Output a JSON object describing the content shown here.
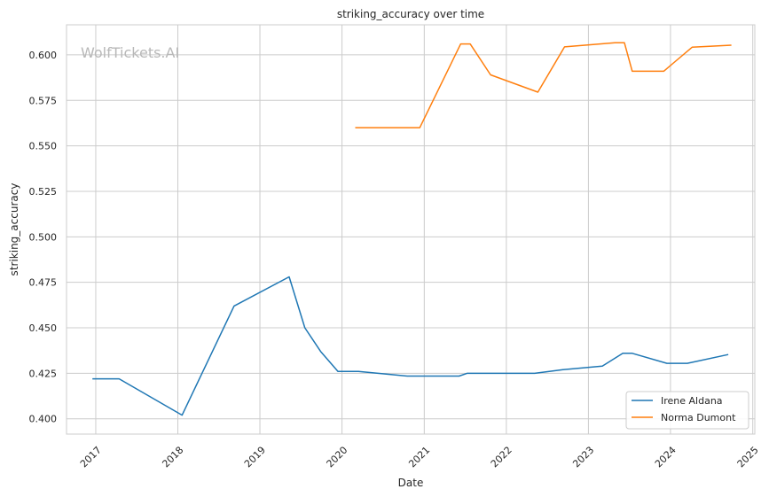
{
  "chart_data": {
    "type": "line",
    "title": "striking_accuracy over time",
    "xlabel": "Date",
    "ylabel": "striking_accuracy",
    "watermark": "WolfTickets.AI",
    "xlim": [
      "2016-08-24",
      "2025-01-10"
    ],
    "ylim": [
      0.3916,
      0.6165
    ],
    "grid": true,
    "legend_position": "bottom-right",
    "x_ticks": [
      "2017",
      "2018",
      "2019",
      "2020",
      "2021",
      "2022",
      "2023",
      "2024",
      "2025"
    ],
    "y_ticks": [
      "0.400",
      "0.425",
      "0.450",
      "0.475",
      "0.500",
      "0.525",
      "0.550",
      "0.575",
      "0.600"
    ],
    "series": [
      {
        "name": "Irene Aldana",
        "color": "#1f77b4",
        "points": [
          [
            "2016-12-17",
            0.422
          ],
          [
            "2017-04-15",
            0.422
          ],
          [
            "2018-01-20",
            0.402
          ],
          [
            "2018-09-08",
            0.462
          ],
          [
            "2019-05-11",
            0.478
          ],
          [
            "2019-07-20",
            0.45
          ],
          [
            "2019-09-28",
            0.437
          ],
          [
            "2019-12-14",
            0.426
          ],
          [
            "2020-03-14",
            0.426
          ],
          [
            "2020-10-17",
            0.4235
          ],
          [
            "2021-06-05",
            0.4235
          ],
          [
            "2021-07-10",
            0.425
          ],
          [
            "2022-05-07",
            0.425
          ],
          [
            "2022-09-10",
            0.427
          ],
          [
            "2023-03-04",
            0.429
          ],
          [
            "2023-06-03",
            0.436
          ],
          [
            "2023-07-15",
            0.436
          ],
          [
            "2023-12-16",
            0.4305
          ],
          [
            "2024-03-16",
            0.4305
          ],
          [
            "2024-09-14",
            0.4353
          ]
        ]
      },
      {
        "name": "Norma Dumont",
        "color": "#ff7f0e",
        "points": [
          [
            "2020-02-29",
            0.56
          ],
          [
            "2020-12-12",
            0.56
          ],
          [
            "2021-06-12",
            0.606
          ],
          [
            "2021-07-24",
            0.606
          ],
          [
            "2021-10-23",
            0.589
          ],
          [
            "2022-05-21",
            0.5795
          ],
          [
            "2022-09-17",
            0.6044
          ],
          [
            "2023-04-29",
            0.6066
          ],
          [
            "2023-06-10",
            0.6066
          ],
          [
            "2023-07-15",
            0.591
          ],
          [
            "2023-12-02",
            0.591
          ],
          [
            "2024-04-06",
            0.6042
          ],
          [
            "2024-09-28",
            0.6053
          ]
        ]
      }
    ]
  }
}
